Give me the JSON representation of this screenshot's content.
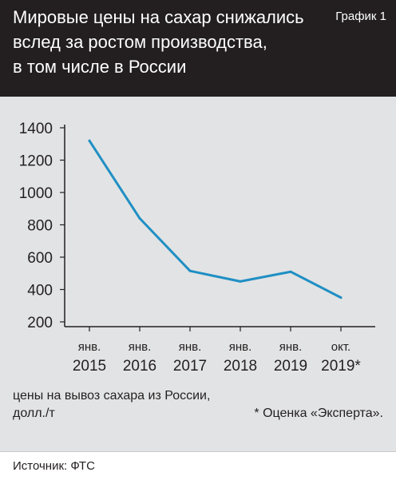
{
  "header": {
    "title_lines": [
      "Мировые цены на сахар снижались",
      "вслед за ростом производства,",
      "в том числе в России"
    ],
    "badge": "График 1"
  },
  "chart_data": {
    "type": "line",
    "categories": [
      [
        "янв.",
        "2015"
      ],
      [
        "янв.",
        "2016"
      ],
      [
        "янв.",
        "2017"
      ],
      [
        "янв.",
        "2018"
      ],
      [
        "янв.",
        "2019"
      ],
      [
        "окт.",
        "2019*"
      ]
    ],
    "values": [
      1320,
      840,
      515,
      450,
      510,
      350
    ],
    "yticks": [
      200,
      400,
      600,
      800,
      1000,
      1200,
      1400
    ],
    "ylim": [
      200,
      1400
    ],
    "grid": false,
    "line_color": "#1f8fc4",
    "ylabel_lines": [
      "цены на вывоз сахара из России,",
      "долл./т"
    ],
    "note": "* Оценка «Эксперта»."
  },
  "footer": {
    "source": "Источник: ФТС"
  }
}
